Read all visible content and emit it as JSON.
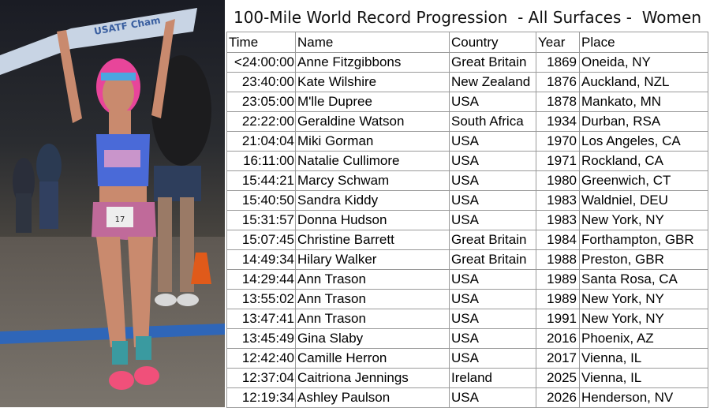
{
  "title": "100-Mile World Record Progression  - All Surfaces -  Women",
  "photo": {
    "banner_text": "USATF Cham",
    "bib_number": "17"
  },
  "headers": {
    "time": "Time",
    "name": "Name",
    "country": "Country",
    "year": "Year",
    "place": "Place"
  },
  "records": [
    {
      "time": "<24:00:00",
      "name": "Anne Fitzgibbons",
      "country": "Great Britain",
      "year": "1869",
      "place": "Oneida, NY"
    },
    {
      "time": "23:40:00",
      "name": "Kate Wilshire",
      "country": "New Zealand",
      "year": "1876",
      "place": "Auckland, NZL"
    },
    {
      "time": "23:05:00",
      "name": "M'lle Dupree",
      "country": "USA",
      "year": "1878",
      "place": "Mankato, MN"
    },
    {
      "time": "22:22:00",
      "name": "Geraldine Watson",
      "country": "South Africa",
      "year": "1934",
      "place": "Durban, RSA"
    },
    {
      "time": "21:04:04",
      "name": "Miki Gorman",
      "country": "USA",
      "year": "1970",
      "place": "Los Angeles, CA"
    },
    {
      "time": "16:11:00",
      "name": "Natalie Cullimore",
      "country": "USA",
      "year": "1971",
      "place": "Rockland, CA"
    },
    {
      "time": "15:44:21",
      "name": "Marcy Schwam",
      "country": "USA",
      "year": "1980",
      "place": "Greenwich, CT"
    },
    {
      "time": "15:40:50",
      "name": "Sandra Kiddy",
      "country": "USA",
      "year": "1983",
      "place": "Waldniel, DEU"
    },
    {
      "time": "15:31:57",
      "name": "Donna Hudson",
      "country": "USA",
      "year": "1983",
      "place": "New York, NY"
    },
    {
      "time": "15:07:45",
      "name": "Christine Barrett",
      "country": "Great Britain",
      "year": "1984",
      "place": "Forthampton, GBR"
    },
    {
      "time": "14:49:34",
      "name": "Hilary Walker",
      "country": "Great Britain",
      "year": "1988",
      "place": "Preston, GBR"
    },
    {
      "time": "14:29:44",
      "name": "Ann Trason",
      "country": "USA",
      "year": "1989",
      "place": "Santa Rosa, CA"
    },
    {
      "time": "13:55:02",
      "name": "Ann Trason",
      "country": "USA",
      "year": "1989",
      "place": "New York, NY"
    },
    {
      "time": "13:47:41",
      "name": "Ann Trason",
      "country": "USA",
      "year": "1991",
      "place": "New York, NY"
    },
    {
      "time": "13:45:49",
      "name": "Gina Slaby",
      "country": "USA",
      "year": "2016",
      "place": "Phoenix, AZ"
    },
    {
      "time": "12:42:40",
      "name": "Camille Herron",
      "country": "USA",
      "year": "2017",
      "place": "Vienna, IL"
    },
    {
      "time": "12:37:04",
      "name": "Caitriona Jennings",
      "country": "Ireland",
      "year": "2025",
      "place": "Vienna, IL"
    },
    {
      "time": "12:19:34",
      "name": "Ashley Paulson",
      "country": "USA",
      "year": "2026",
      "place": "Henderson, NV"
    }
  ]
}
